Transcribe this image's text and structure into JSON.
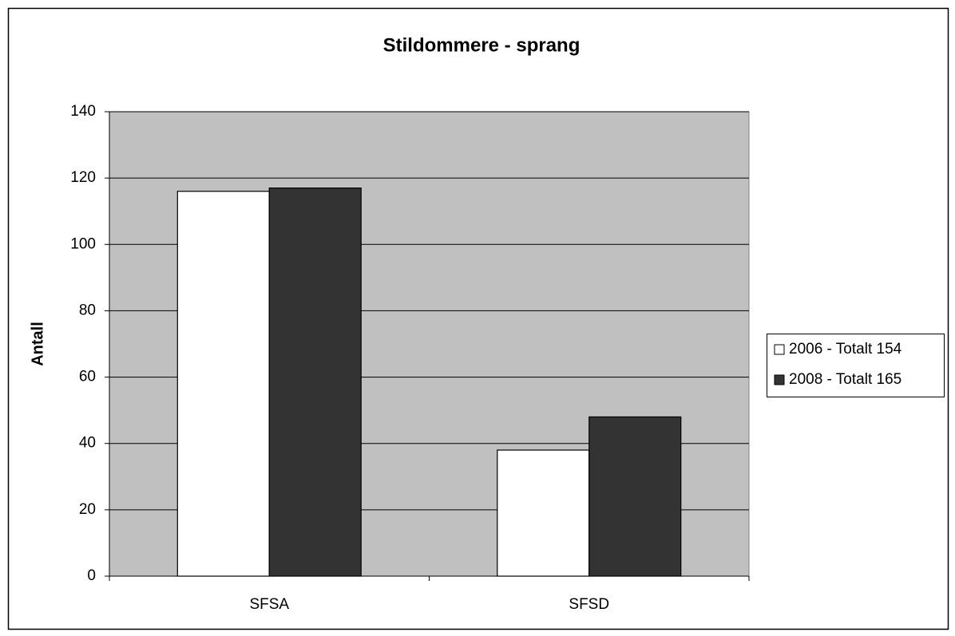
{
  "chart_data": {
    "type": "bar",
    "title": "Stildommere - sprang",
    "y_label": "Antall",
    "categories": [
      "SFSA",
      "SFSD"
    ],
    "series": [
      {
        "name": "2006 - Totalt 154",
        "color": "#ffffff",
        "values": [
          116,
          38
        ]
      },
      {
        "name": "2008 - Totalt 165",
        "color": "#333333",
        "values": [
          117,
          48
        ]
      }
    ],
    "ylim": [
      0,
      140
    ],
    "yticks": [
      0,
      20,
      40,
      60,
      80,
      100,
      120,
      140
    ],
    "grid": true,
    "legend": "right",
    "plot_background": "#c0c0c0"
  }
}
